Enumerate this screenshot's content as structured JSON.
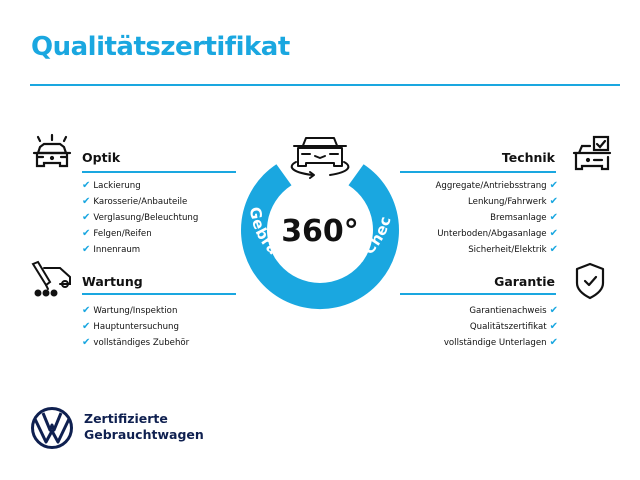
{
  "title": "Qualitätszertifikat",
  "colors": {
    "accent": "#1aa7e0",
    "brand_navy": "#0f2050",
    "text": "#111111"
  },
  "badge": {
    "number": "360°",
    "arc_text": "Gebrauchtwagen-Check",
    "icon": "car-rotate-icon"
  },
  "sections": {
    "optik": {
      "heading": "Optik",
      "icon": "car-lights-icon",
      "items": [
        "Lackierung",
        "Karosserie/Anbauteile",
        "Verglasung/Beleuchtung",
        "Felgen/Reifen",
        "Innenraum"
      ]
    },
    "wartung": {
      "heading": "Wartung",
      "icon": "service-tools-icon",
      "items": [
        "Wartung/Inspektion",
        "Hauptuntersuchung",
        "vollständiges Zubehör"
      ]
    },
    "technik": {
      "heading": "Technik",
      "icon": "car-checkbox-icon",
      "items": [
        "Aggregate/Antriebsstrang",
        "Lenkung/Fahrwerk",
        "Bremsanlage",
        "Unterboden/Abgasanlage",
        "Sicherheit/Elektrik"
      ]
    },
    "garantie": {
      "heading": "Garantie",
      "icon": "shield-check-icon",
      "items": [
        "Garantienachweis",
        "Qualitätszertifikat",
        "vollständige Unterlagen"
      ]
    }
  },
  "check_glyph": "✔",
  "logo": {
    "line1": "Zertifizierte",
    "line2": "Gebrauchtwagen",
    "mark": "VW"
  }
}
